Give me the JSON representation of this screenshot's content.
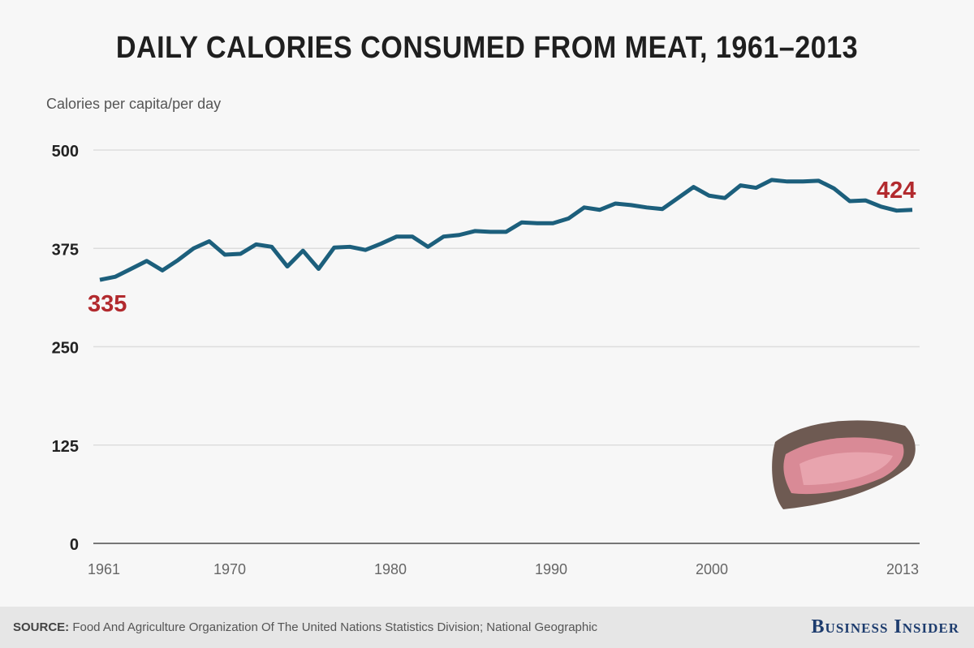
{
  "chart_data": {
    "type": "line",
    "title": "DAILY CALORIES CONSUMED FROM MEAT, 1961–2013",
    "ylabel": "Calories per capita/per day",
    "xlabel": "",
    "ylim": [
      0,
      500
    ],
    "yticks": [
      "0",
      "125",
      "250",
      "375",
      "500"
    ],
    "ytick_values": [
      0,
      125,
      250,
      375,
      500
    ],
    "xticks": [
      "1961",
      "1970",
      "1980",
      "1990",
      "2000",
      "2013"
    ],
    "xtick_values": [
      1961,
      1970,
      1980,
      1990,
      2000,
      2013
    ],
    "grid": true,
    "color": "#1c5f7c",
    "label_color": "#b22a2e",
    "annotations": {
      "start": "335",
      "end": "424"
    },
    "x": [
      1961,
      1962,
      1963,
      1964,
      1965,
      1966,
      1967,
      1968,
      1969,
      1970,
      1971,
      1972,
      1973,
      1974,
      1975,
      1976,
      1977,
      1978,
      1979,
      1980,
      1981,
      1982,
      1983,
      1984,
      1985,
      1986,
      1987,
      1988,
      1989,
      1990,
      1991,
      1992,
      1993,
      1994,
      1995,
      1996,
      1997,
      1998,
      1999,
      2000,
      2001,
      2002,
      2003,
      2004,
      2005,
      2006,
      2007,
      2008,
      2009,
      2010,
      2011,
      2012,
      2013
    ],
    "y": [
      335,
      339,
      349,
      359,
      347,
      360,
      375,
      384,
      367,
      368,
      380,
      377,
      352,
      372,
      349,
      376,
      377,
      373,
      381,
      390,
      390,
      377,
      390,
      392,
      397,
      396,
      396,
      408,
      407,
      407,
      413,
      427,
      424,
      432,
      430,
      427,
      425,
      439,
      453,
      442,
      439,
      455,
      452,
      462,
      460,
      460,
      461,
      451,
      435,
      436,
      428,
      423,
      424
    ]
  },
  "footer": {
    "source_label": "SOURCE:",
    "source_text": " Food And Agriculture Organization Of The United Nations Statistics Division; National Geographic",
    "brand": "Business Insider"
  }
}
